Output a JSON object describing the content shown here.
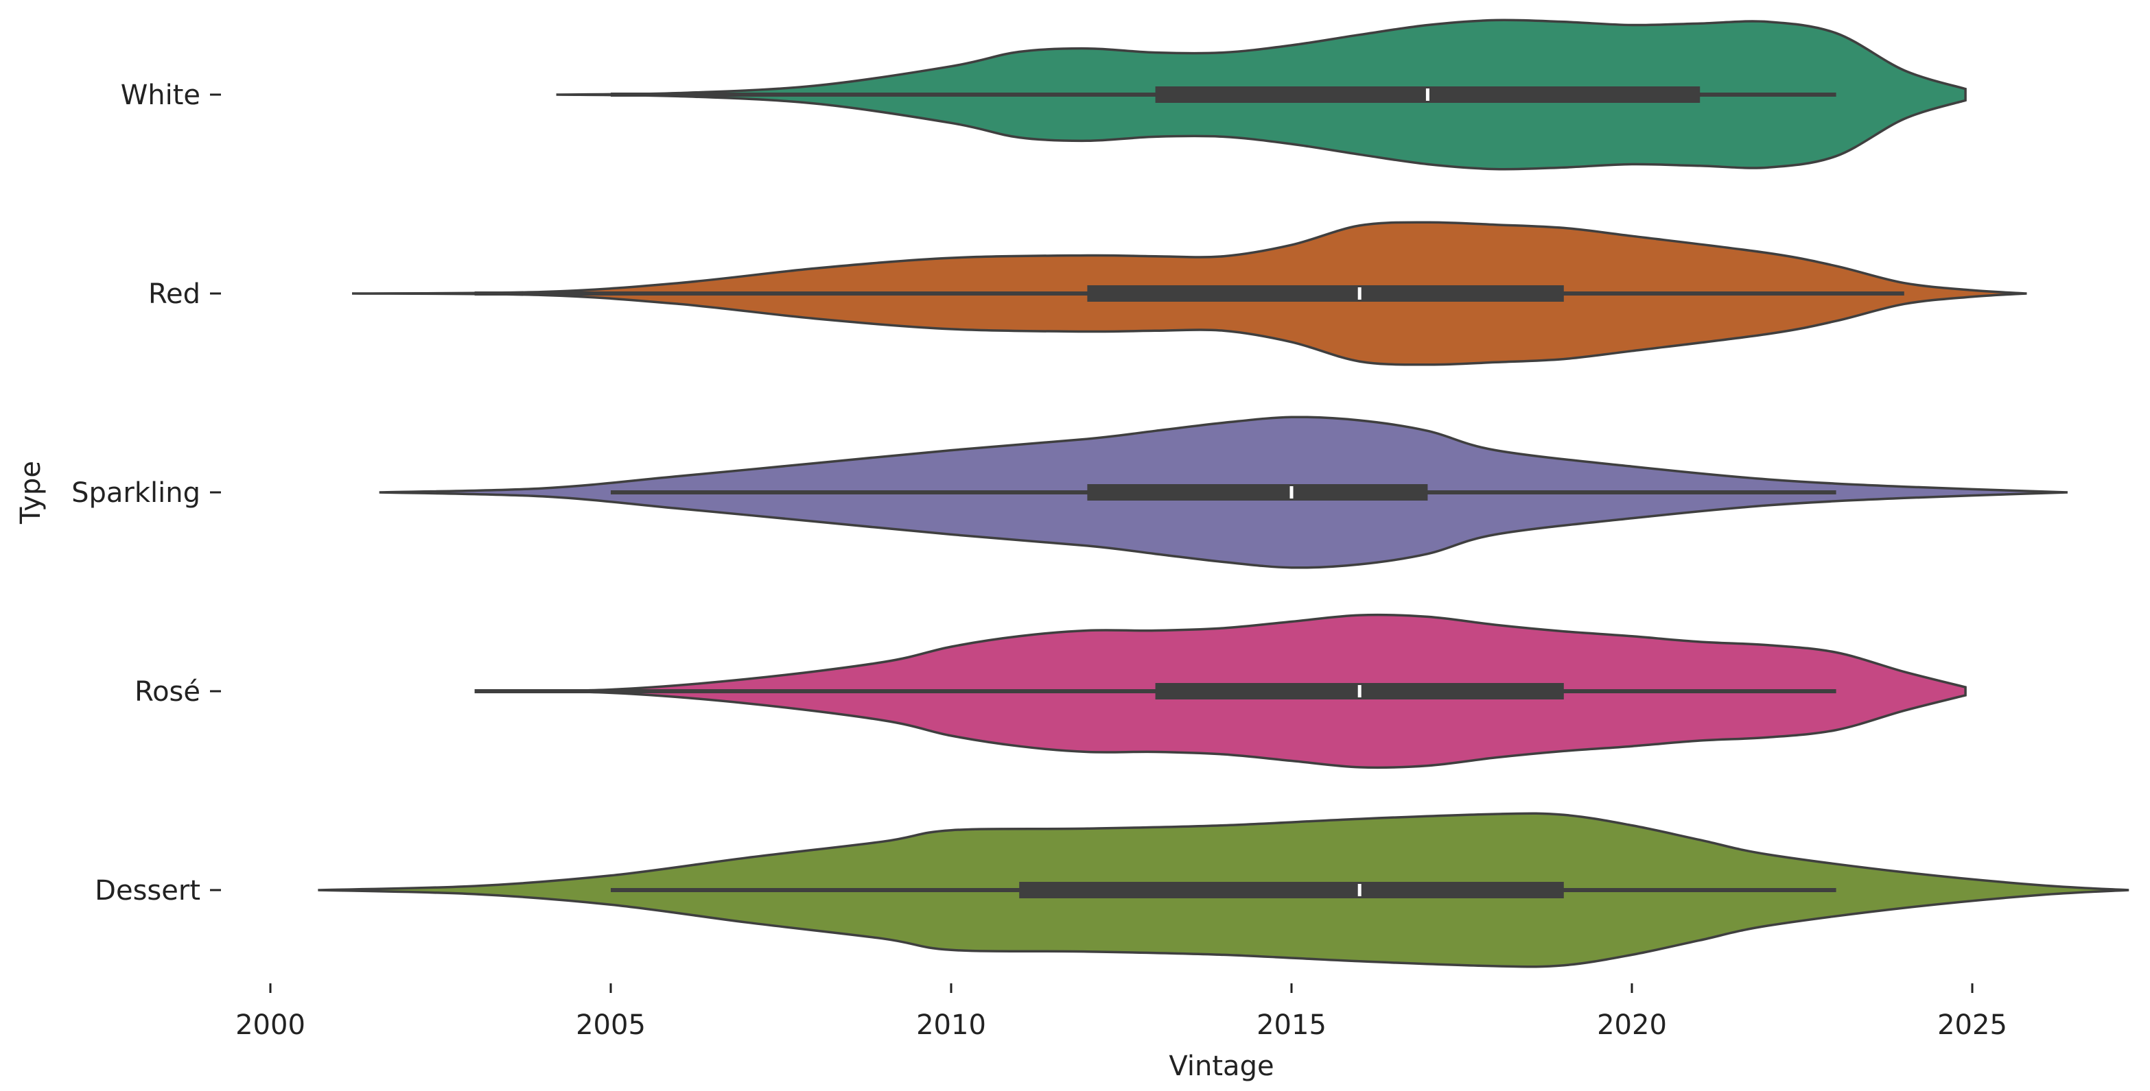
{
  "chart_data": {
    "type": "violin",
    "orientation": "horizontal",
    "xlabel": "Vintage",
    "ylabel": "Type",
    "xlim": [
      2000,
      2027
    ],
    "x_ticks": [
      2000,
      2005,
      2010,
      2015,
      2020,
      2025
    ],
    "grid": false,
    "legend": "none",
    "series": [
      {
        "name": "White",
        "color": "#358d6c",
        "min": 2005,
        "q1": 2013,
        "median": 2017,
        "q3": 2021,
        "max": 2023,
        "kde_range": [
          2004.2,
          2024.9
        ],
        "density": [
          [
            2004.2,
            0.0
          ],
          [
            2006,
            0.02
          ],
          [
            2008,
            0.11
          ],
          [
            2010,
            0.35
          ],
          [
            2011,
            0.53
          ],
          [
            2012,
            0.57
          ],
          [
            2013,
            0.52
          ],
          [
            2014,
            0.52
          ],
          [
            2015,
            0.61
          ],
          [
            2016,
            0.74
          ],
          [
            2017,
            0.86
          ],
          [
            2018,
            0.92
          ],
          [
            2019,
            0.9
          ],
          [
            2020,
            0.86
          ],
          [
            2021,
            0.88
          ],
          [
            2022,
            0.9
          ],
          [
            2023,
            0.76
          ],
          [
            2024,
            0.3
          ],
          [
            2024.9,
            0.07
          ]
        ]
      },
      {
        "name": "Red",
        "color": "#b9632d",
        "min": 2003,
        "q1": 2012,
        "median": 2016,
        "q3": 2019,
        "max": 2024,
        "kde_range": [
          2001.2,
          2025.8
        ],
        "density": [
          [
            2001.2,
            0.0
          ],
          [
            2004,
            0.02
          ],
          [
            2006,
            0.13
          ],
          [
            2008,
            0.31
          ],
          [
            2010,
            0.44
          ],
          [
            2012,
            0.47
          ],
          [
            2013,
            0.46
          ],
          [
            2014,
            0.46
          ],
          [
            2015,
            0.6
          ],
          [
            2016,
            0.84
          ],
          [
            2017,
            0.88
          ],
          [
            2018,
            0.85
          ],
          [
            2019,
            0.81
          ],
          [
            2020,
            0.71
          ],
          [
            2022,
            0.5
          ],
          [
            2023,
            0.34
          ],
          [
            2024,
            0.13
          ],
          [
            2025,
            0.04
          ],
          [
            2025.8,
            0.0
          ]
        ]
      },
      {
        "name": "Sparkling",
        "color": "#7a74a7",
        "min": 2005,
        "q1": 2012,
        "median": 2015,
        "q3": 2017,
        "max": 2023,
        "kde_range": [
          2001.6,
          2026.4
        ],
        "density": [
          [
            2001.6,
            0.0
          ],
          [
            2004,
            0.05
          ],
          [
            2006,
            0.2
          ],
          [
            2008,
            0.36
          ],
          [
            2010,
            0.52
          ],
          [
            2012,
            0.66
          ],
          [
            2013,
            0.76
          ],
          [
            2014,
            0.86
          ],
          [
            2015,
            0.93
          ],
          [
            2016,
            0.89
          ],
          [
            2017,
            0.76
          ],
          [
            2018,
            0.52
          ],
          [
            2020,
            0.32
          ],
          [
            2022,
            0.16
          ],
          [
            2024,
            0.07
          ],
          [
            2026.4,
            0.0
          ]
        ]
      },
      {
        "name": "Rosé",
        "color": "#c54883",
        "min": 2003,
        "q1": 2013,
        "median": 2016,
        "q3": 2019,
        "max": 2023,
        "kde_range": [
          2003.1,
          2024.9
        ],
        "density": [
          [
            2003.1,
            0.0
          ],
          [
            2005,
            0.02
          ],
          [
            2007,
            0.15
          ],
          [
            2009,
            0.36
          ],
          [
            2010,
            0.55
          ],
          [
            2011,
            0.68
          ],
          [
            2012,
            0.75
          ],
          [
            2013,
            0.75
          ],
          [
            2014,
            0.78
          ],
          [
            2015,
            0.86
          ],
          [
            2016,
            0.94
          ],
          [
            2017,
            0.92
          ],
          [
            2018,
            0.82
          ],
          [
            2019,
            0.74
          ],
          [
            2020,
            0.68
          ],
          [
            2021,
            0.61
          ],
          [
            2022,
            0.57
          ],
          [
            2023,
            0.48
          ],
          [
            2024,
            0.24
          ],
          [
            2024.9,
            0.05
          ]
        ]
      },
      {
        "name": "Dessert",
        "color": "#75923c",
        "min": 2005,
        "q1": 2011,
        "median": 2016,
        "q3": 2019,
        "max": 2023,
        "kde_range": [
          2000.7,
          2027.3
        ],
        "density": [
          [
            2000.7,
            0.0
          ],
          [
            2003,
            0.05
          ],
          [
            2005,
            0.18
          ],
          [
            2007,
            0.4
          ],
          [
            2009,
            0.6
          ],
          [
            2010,
            0.74
          ],
          [
            2012,
            0.76
          ],
          [
            2014,
            0.8
          ],
          [
            2016,
            0.88
          ],
          [
            2018,
            0.94
          ],
          [
            2019,
            0.93
          ],
          [
            2020,
            0.8
          ],
          [
            2021,
            0.62
          ],
          [
            2022,
            0.44
          ],
          [
            2024,
            0.22
          ],
          [
            2026,
            0.06
          ],
          [
            2027.3,
            0.0
          ]
        ]
      }
    ]
  }
}
